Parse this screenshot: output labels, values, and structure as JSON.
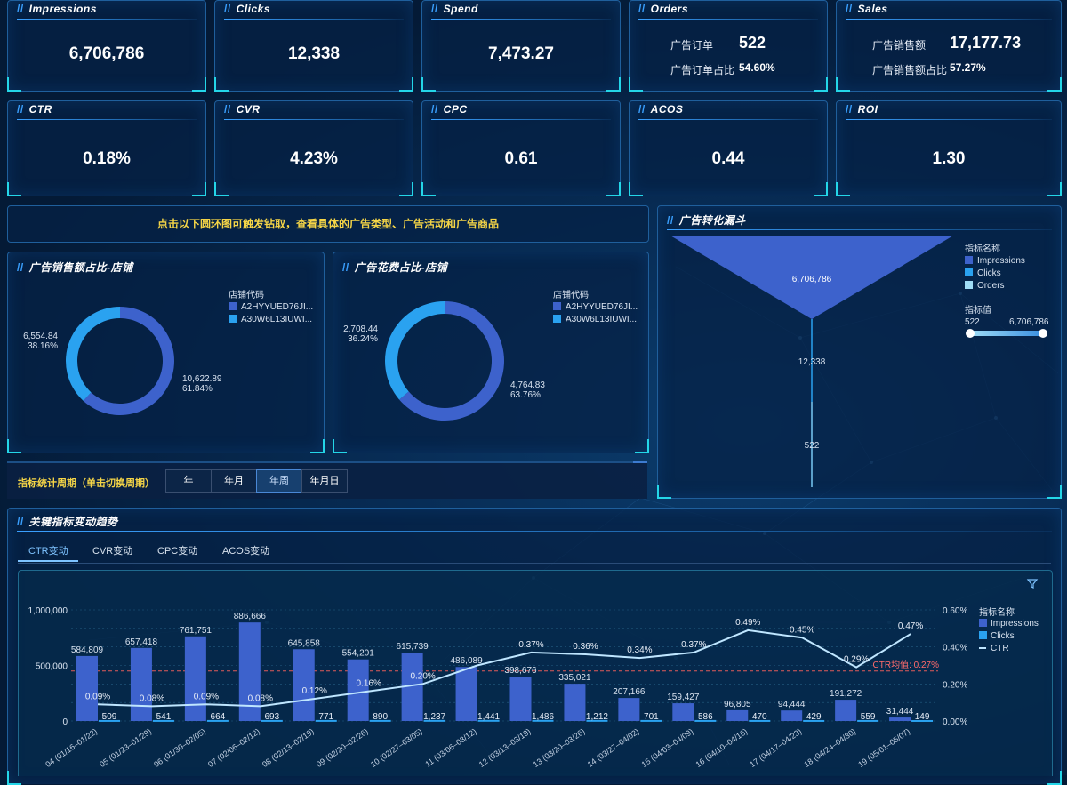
{
  "kpi_row1": [
    {
      "title": "Impressions",
      "value": "6,706,786"
    },
    {
      "title": "Clicks",
      "value": "12,338"
    },
    {
      "title": "Spend",
      "value": "7,473.27"
    }
  ],
  "orders": {
    "title": "Orders",
    "l1": "广告订单",
    "v1": "522",
    "l2": "广告订单占比",
    "v2": "54.60%"
  },
  "sales": {
    "title": "Sales",
    "l1": "广告销售额",
    "v1": "17,177.73",
    "l2": "广告销售额占比",
    "v2": "57.27%"
  },
  "kpi_row2": [
    {
      "title": "CTR",
      "value": "0.18%"
    },
    {
      "title": "CVR",
      "value": "4.23%"
    },
    {
      "title": "CPC",
      "value": "0.61"
    },
    {
      "title": "ACOS",
      "value": "0.44"
    },
    {
      "title": "ROI",
      "value": "1.30"
    }
  ],
  "banner": "点击以下圆环图可触发钻取，查看具体的广告类型、广告活动和广告商品",
  "donut1": {
    "title": "广告销售额占比-店铺",
    "legend_title": "店铺代码",
    "items": [
      {
        "name": "A2HYYUED76JI...",
        "value": 10622.89,
        "label": "10,622.89",
        "pct": "61.84%",
        "color": "#3d62cc"
      },
      {
        "name": "A30W6L13IUWI...",
        "value": 6554.84,
        "label": "6,554.84",
        "pct": "38.16%",
        "color": "#2aa2f0"
      }
    ]
  },
  "donut2": {
    "title": "广告花费占比-店铺",
    "legend_title": "店铺代码",
    "items": [
      {
        "name": "A2HYYUED76JI...",
        "value": 4764.83,
        "label": "4,764.83",
        "pct": "63.76%",
        "color": "#3d62cc"
      },
      {
        "name": "A30W6L13IUWI...",
        "value": 2708.44,
        "label": "2,708.44",
        "pct": "36.24%",
        "color": "#2aa2f0"
      }
    ]
  },
  "funnel": {
    "title": "广告转化漏斗",
    "legend_title": "指标名称",
    "items": [
      {
        "name": "Impressions",
        "value": 6706786,
        "label": "6,706,786",
        "color": "#3d62cc"
      },
      {
        "name": "Clicks",
        "value": 12338,
        "label": "12,338",
        "color": "#2aa2f0"
      },
      {
        "name": "Orders",
        "value": 522,
        "label": "522",
        "color": "#9fdcf5"
      }
    ],
    "range_title": "指标值",
    "range_min": "522",
    "range_max": "6,706,786"
  },
  "period": {
    "label": "指标统计周期（单击切换周期）",
    "buttons": [
      "年",
      "年月",
      "年周",
      "年月日"
    ],
    "active": 2
  },
  "trend": {
    "title": "关键指标变动趋势",
    "tabs": [
      "CTR变动",
      "CVR变动",
      "CPC变动",
      "ACOS变动"
    ],
    "active_tab": 0
  },
  "chart_data": {
    "type": "bar",
    "categories": [
      "2023-04 (01/16–01/22)",
      "2023-05 (01/23–01/29)",
      "2023-06 (01/30–02/05)",
      "2023-07 (02/06–02/12)",
      "2023-08 (02/13–02/19)",
      "2023-09 (02/20–02/26)",
      "2023-10 (02/27–03/05)",
      "2023-11 (03/06–03/12)",
      "2023-12 (03/13–03/19)",
      "2023-13 (03/20–03/26)",
      "2023-14 (03/27–04/02)",
      "2023-15 (04/03–04/09)",
      "2023-16 (04/10–04/16)",
      "2023-17 (04/17–04/23)",
      "2023-18 (04/24–04/30)",
      "2023-19 (05/01–05/07)"
    ],
    "category_labels": [
      "04 (01/16–01/22)",
      "05 (01/23–01/29)",
      "06 (01/30–02/05)",
      "07 (02/06–02/12)",
      "08 (02/13–02/19)",
      "09 (02/20–02/26)",
      "10 (02/27–03/05)",
      "11 (03/06–03/12)",
      "12 (03/13–03/19)",
      "13 (03/20–03/26)",
      "14 (03/27–04/02)",
      "15 (04/03–04/09)",
      "16 (04/10–04/16)",
      "17 (04/17–04/23)",
      "18 (04/24–04/30)",
      "19 (05/01–05/07)"
    ],
    "series": [
      {
        "name": "Impressions",
        "type": "bar",
        "axis": "left",
        "color": "#3d62cc",
        "values": [
          584809,
          657418,
          761751,
          886666,
          645858,
          554201,
          615739,
          486089,
          398676,
          335021,
          207166,
          159427,
          96805,
          94444,
          191272,
          31444
        ],
        "labels": [
          "584,809",
          "657,418",
          "761,751",
          "886,666",
          "645,858",
          "554,201",
          "615,739",
          "486,089",
          "398,676",
          "335,021",
          "207,166",
          "159,427",
          "96,805",
          "94,444",
          "191,272",
          "31,444"
        ]
      },
      {
        "name": "Clicks",
        "type": "bar",
        "axis": "left",
        "color": "#2aa2f0",
        "values": [
          509,
          541,
          664,
          693,
          771,
          890,
          1237,
          1441,
          1486,
          1212,
          701,
          586,
          470,
          429,
          559,
          149
        ],
        "labels": [
          "509",
          "541",
          "664",
          "693",
          "771",
          "890",
          "1,237",
          "1,441",
          "1,486",
          "1,212",
          "701",
          "586",
          "470",
          "429",
          "559",
          "149"
        ]
      },
      {
        "name": "CTR",
        "type": "line",
        "axis": "right",
        "color": "#bfe6ff",
        "values": [
          0.09,
          0.08,
          0.09,
          0.08,
          0.12,
          0.16,
          0.2,
          0.3,
          0.37,
          0.36,
          0.34,
          0.37,
          0.49,
          0.45,
          0.29,
          0.47
        ],
        "labels": [
          "0.09%",
          "0.08%",
          "0.09%",
          "0.08%",
          "0.12%",
          "0.16%",
          "0.20%",
          "",
          "0.37%",
          "0.36%",
          "0.34%",
          "0.37%",
          "0.49%",
          "0.45%",
          "0.29%",
          "0.47%"
        ]
      }
    ],
    "left_ticks": [
      "1,000,000",
      "500,000",
      "0"
    ],
    "left_ylim": [
      0,
      1000000
    ],
    "right_ticks": [
      "0.60%",
      "0.40%",
      "0.20%",
      "0.00%"
    ],
    "right_ylim": [
      0,
      0.6
    ],
    "reference_line": {
      "label": "CTR均值: 0.27%",
      "value": 0.27
    },
    "legend_title": "指标名称",
    "legend": "right",
    "grid": true
  }
}
